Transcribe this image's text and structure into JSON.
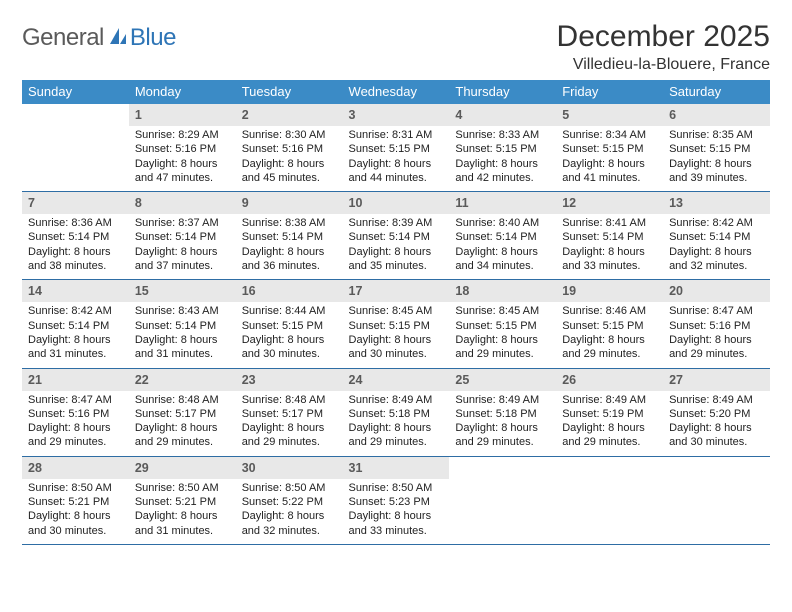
{
  "brand": {
    "part1": "General",
    "part2": "Blue"
  },
  "title": "December 2025",
  "location": "Villedieu-la-Blouere, France",
  "weekdays": [
    "Sunday",
    "Monday",
    "Tuesday",
    "Wednesday",
    "Thursday",
    "Friday",
    "Saturday"
  ],
  "colors": {
    "header_bg": "#3b8bc6",
    "row_border": "#2e6da4",
    "daynum_bg": "#e8e8e8",
    "logo_gray": "#5a5a5a",
    "logo_blue": "#2e75b6"
  },
  "weeks": [
    [
      {
        "day": "",
        "sunrise": "",
        "sunset": "",
        "daylight1": "",
        "daylight2": ""
      },
      {
        "day": "1",
        "sunrise": "Sunrise: 8:29 AM",
        "sunset": "Sunset: 5:16 PM",
        "daylight1": "Daylight: 8 hours",
        "daylight2": "and 47 minutes."
      },
      {
        "day": "2",
        "sunrise": "Sunrise: 8:30 AM",
        "sunset": "Sunset: 5:16 PM",
        "daylight1": "Daylight: 8 hours",
        "daylight2": "and 45 minutes."
      },
      {
        "day": "3",
        "sunrise": "Sunrise: 8:31 AM",
        "sunset": "Sunset: 5:15 PM",
        "daylight1": "Daylight: 8 hours",
        "daylight2": "and 44 minutes."
      },
      {
        "day": "4",
        "sunrise": "Sunrise: 8:33 AM",
        "sunset": "Sunset: 5:15 PM",
        "daylight1": "Daylight: 8 hours",
        "daylight2": "and 42 minutes."
      },
      {
        "day": "5",
        "sunrise": "Sunrise: 8:34 AM",
        "sunset": "Sunset: 5:15 PM",
        "daylight1": "Daylight: 8 hours",
        "daylight2": "and 41 minutes."
      },
      {
        "day": "6",
        "sunrise": "Sunrise: 8:35 AM",
        "sunset": "Sunset: 5:15 PM",
        "daylight1": "Daylight: 8 hours",
        "daylight2": "and 39 minutes."
      }
    ],
    [
      {
        "day": "7",
        "sunrise": "Sunrise: 8:36 AM",
        "sunset": "Sunset: 5:14 PM",
        "daylight1": "Daylight: 8 hours",
        "daylight2": "and 38 minutes."
      },
      {
        "day": "8",
        "sunrise": "Sunrise: 8:37 AM",
        "sunset": "Sunset: 5:14 PM",
        "daylight1": "Daylight: 8 hours",
        "daylight2": "and 37 minutes."
      },
      {
        "day": "9",
        "sunrise": "Sunrise: 8:38 AM",
        "sunset": "Sunset: 5:14 PM",
        "daylight1": "Daylight: 8 hours",
        "daylight2": "and 36 minutes."
      },
      {
        "day": "10",
        "sunrise": "Sunrise: 8:39 AM",
        "sunset": "Sunset: 5:14 PM",
        "daylight1": "Daylight: 8 hours",
        "daylight2": "and 35 minutes."
      },
      {
        "day": "11",
        "sunrise": "Sunrise: 8:40 AM",
        "sunset": "Sunset: 5:14 PM",
        "daylight1": "Daylight: 8 hours",
        "daylight2": "and 34 minutes."
      },
      {
        "day": "12",
        "sunrise": "Sunrise: 8:41 AM",
        "sunset": "Sunset: 5:14 PM",
        "daylight1": "Daylight: 8 hours",
        "daylight2": "and 33 minutes."
      },
      {
        "day": "13",
        "sunrise": "Sunrise: 8:42 AM",
        "sunset": "Sunset: 5:14 PM",
        "daylight1": "Daylight: 8 hours",
        "daylight2": "and 32 minutes."
      }
    ],
    [
      {
        "day": "14",
        "sunrise": "Sunrise: 8:42 AM",
        "sunset": "Sunset: 5:14 PM",
        "daylight1": "Daylight: 8 hours",
        "daylight2": "and 31 minutes."
      },
      {
        "day": "15",
        "sunrise": "Sunrise: 8:43 AM",
        "sunset": "Sunset: 5:14 PM",
        "daylight1": "Daylight: 8 hours",
        "daylight2": "and 31 minutes."
      },
      {
        "day": "16",
        "sunrise": "Sunrise: 8:44 AM",
        "sunset": "Sunset: 5:15 PM",
        "daylight1": "Daylight: 8 hours",
        "daylight2": "and 30 minutes."
      },
      {
        "day": "17",
        "sunrise": "Sunrise: 8:45 AM",
        "sunset": "Sunset: 5:15 PM",
        "daylight1": "Daylight: 8 hours",
        "daylight2": "and 30 minutes."
      },
      {
        "day": "18",
        "sunrise": "Sunrise: 8:45 AM",
        "sunset": "Sunset: 5:15 PM",
        "daylight1": "Daylight: 8 hours",
        "daylight2": "and 29 minutes."
      },
      {
        "day": "19",
        "sunrise": "Sunrise: 8:46 AM",
        "sunset": "Sunset: 5:15 PM",
        "daylight1": "Daylight: 8 hours",
        "daylight2": "and 29 minutes."
      },
      {
        "day": "20",
        "sunrise": "Sunrise: 8:47 AM",
        "sunset": "Sunset: 5:16 PM",
        "daylight1": "Daylight: 8 hours",
        "daylight2": "and 29 minutes."
      }
    ],
    [
      {
        "day": "21",
        "sunrise": "Sunrise: 8:47 AM",
        "sunset": "Sunset: 5:16 PM",
        "daylight1": "Daylight: 8 hours",
        "daylight2": "and 29 minutes."
      },
      {
        "day": "22",
        "sunrise": "Sunrise: 8:48 AM",
        "sunset": "Sunset: 5:17 PM",
        "daylight1": "Daylight: 8 hours",
        "daylight2": "and 29 minutes."
      },
      {
        "day": "23",
        "sunrise": "Sunrise: 8:48 AM",
        "sunset": "Sunset: 5:17 PM",
        "daylight1": "Daylight: 8 hours",
        "daylight2": "and 29 minutes."
      },
      {
        "day": "24",
        "sunrise": "Sunrise: 8:49 AM",
        "sunset": "Sunset: 5:18 PM",
        "daylight1": "Daylight: 8 hours",
        "daylight2": "and 29 minutes."
      },
      {
        "day": "25",
        "sunrise": "Sunrise: 8:49 AM",
        "sunset": "Sunset: 5:18 PM",
        "daylight1": "Daylight: 8 hours",
        "daylight2": "and 29 minutes."
      },
      {
        "day": "26",
        "sunrise": "Sunrise: 8:49 AM",
        "sunset": "Sunset: 5:19 PM",
        "daylight1": "Daylight: 8 hours",
        "daylight2": "and 29 minutes."
      },
      {
        "day": "27",
        "sunrise": "Sunrise: 8:49 AM",
        "sunset": "Sunset: 5:20 PM",
        "daylight1": "Daylight: 8 hours",
        "daylight2": "and 30 minutes."
      }
    ],
    [
      {
        "day": "28",
        "sunrise": "Sunrise: 8:50 AM",
        "sunset": "Sunset: 5:21 PM",
        "daylight1": "Daylight: 8 hours",
        "daylight2": "and 30 minutes."
      },
      {
        "day": "29",
        "sunrise": "Sunrise: 8:50 AM",
        "sunset": "Sunset: 5:21 PM",
        "daylight1": "Daylight: 8 hours",
        "daylight2": "and 31 minutes."
      },
      {
        "day": "30",
        "sunrise": "Sunrise: 8:50 AM",
        "sunset": "Sunset: 5:22 PM",
        "daylight1": "Daylight: 8 hours",
        "daylight2": "and 32 minutes."
      },
      {
        "day": "31",
        "sunrise": "Sunrise: 8:50 AM",
        "sunset": "Sunset: 5:23 PM",
        "daylight1": "Daylight: 8 hours",
        "daylight2": "and 33 minutes."
      },
      {
        "day": "",
        "sunrise": "",
        "sunset": "",
        "daylight1": "",
        "daylight2": ""
      },
      {
        "day": "",
        "sunrise": "",
        "sunset": "",
        "daylight1": "",
        "daylight2": ""
      },
      {
        "day": "",
        "sunrise": "",
        "sunset": "",
        "daylight1": "",
        "daylight2": ""
      }
    ]
  ]
}
